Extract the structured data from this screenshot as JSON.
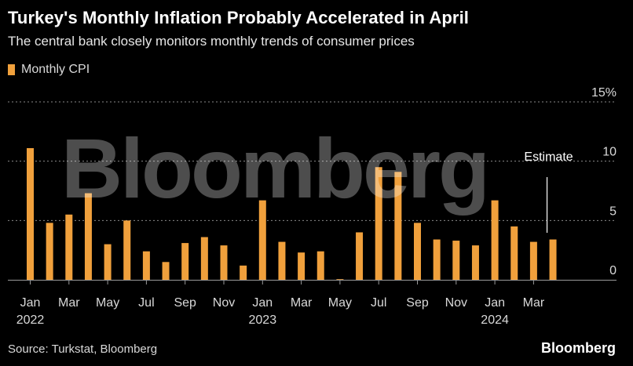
{
  "header": {
    "title": "Turkey's Monthly Inflation Probably Accelerated in April",
    "subtitle": "The central bank closely monitors monthly trends of consumer prices"
  },
  "legend": {
    "label": "Monthly CPI",
    "color": "#f0a03c"
  },
  "watermark": "Bloomberg",
  "footer": {
    "source": "Source: Turkstat, Bloomberg",
    "brand": "Bloomberg"
  },
  "chart_data": {
    "type": "bar",
    "series": [
      {
        "name": "Monthly CPI",
        "color": "#f0a03c",
        "values": [
          11.1,
          4.8,
          5.5,
          7.3,
          3.0,
          5.0,
          2.4,
          1.5,
          3.1,
          3.6,
          2.9,
          1.2,
          6.7,
          3.2,
          2.3,
          2.4,
          0.0,
          4.0,
          9.5,
          9.1,
          4.8,
          3.4,
          3.3,
          2.9,
          6.7,
          4.5,
          3.2,
          3.4
        ]
      }
    ],
    "categories": [
      "Jan 2022",
      "Feb 2022",
      "Mar 2022",
      "Apr 2022",
      "May 2022",
      "Jun 2022",
      "Jul 2022",
      "Aug 2022",
      "Sep 2022",
      "Oct 2022",
      "Nov 2022",
      "Dec 2022",
      "Jan 2023",
      "Feb 2023",
      "Mar 2023",
      "Apr 2023",
      "May 2023",
      "Jun 2023",
      "Jul 2023",
      "Aug 2023",
      "Sep 2023",
      "Oct 2023",
      "Nov 2023",
      "Dec 2023",
      "Jan 2024",
      "Feb 2024",
      "Mar 2024",
      "Apr 2024"
    ],
    "estimate_index": 27,
    "x_ticks": [
      {
        "index": 0,
        "label": "Jan",
        "year": "2022"
      },
      {
        "index": 2,
        "label": "Mar"
      },
      {
        "index": 4,
        "label": "May"
      },
      {
        "index": 6,
        "label": "Jul"
      },
      {
        "index": 8,
        "label": "Sep"
      },
      {
        "index": 10,
        "label": "Nov"
      },
      {
        "index": 12,
        "label": "Jan",
        "year": "2023"
      },
      {
        "index": 14,
        "label": "Mar"
      },
      {
        "index": 16,
        "label": "May"
      },
      {
        "index": 18,
        "label": "Jul"
      },
      {
        "index": 20,
        "label": "Sep"
      },
      {
        "index": 22,
        "label": "Nov"
      },
      {
        "index": 24,
        "label": "Jan",
        "year": "2024"
      },
      {
        "index": 26,
        "label": "Mar"
      }
    ],
    "y_ticks": [
      {
        "value": 0,
        "label": "0"
      },
      {
        "value": 5,
        "label": "5"
      },
      {
        "value": 10,
        "label": "10"
      },
      {
        "value": 15,
        "label": "15%"
      }
    ],
    "ylim": [
      0,
      15
    ],
    "annotation": "Estimate",
    "title": "Turkey's Monthly Inflation Probably Accelerated in April",
    "xlabel": "",
    "ylabel": "%"
  }
}
